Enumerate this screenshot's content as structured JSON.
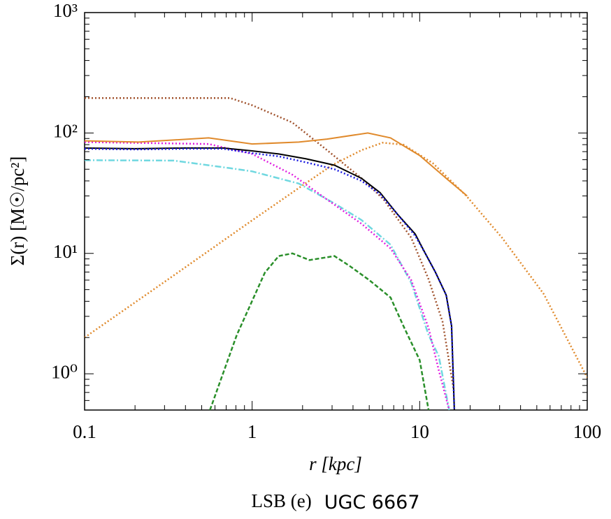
{
  "chart_data": {
    "type": "line",
    "x_label": "r [kpc]",
    "y_label": "Σ(r) [M☉/pc²]",
    "caption": [
      "LSB (e)",
      "UGC 6667"
    ],
    "xscale": "log",
    "yscale": "log",
    "xlim": [
      0.1,
      100
    ],
    "xticks": [
      0.1,
      1,
      10,
      100
    ],
    "ylim": [
      0.5,
      1000
    ],
    "yticks": [
      {
        "value": 1,
        "label": "10⁰"
      },
      {
        "value": 10,
        "label": "10¹"
      },
      {
        "value": 100,
        "label": "10²"
      },
      {
        "value": 1000,
        "label": "10³"
      }
    ],
    "series": [
      {
        "color": "#2a8f2a",
        "style": "dashed",
        "x": [
          0.56,
          0.81,
          1.19,
          1.44,
          1.74,
          2.2,
          3.1,
          3.8,
          5,
          6.7,
          8.1,
          10,
          11.3
        ],
        "values": [
          0.5,
          2.1,
          6.9,
          9.5,
          10,
          8.8,
          9.5,
          7.9,
          6,
          4.3,
          2.4,
          1.3,
          0.5
        ]
      },
      {
        "color": "#e08a2c",
        "style": "dotted",
        "x": [
          0.1,
          0.3,
          1,
          2,
          3,
          4.5,
          6,
          8,
          12,
          19,
          31,
          55,
          100
        ],
        "values": [
          2.0,
          5.8,
          18.8,
          36.7,
          54,
          72,
          83,
          80,
          56,
          30,
          13.5,
          4.6,
          0.93
        ]
      },
      {
        "color": "#a0522d",
        "style": "dotted",
        "x": [
          0.1,
          0.3,
          0.74,
          1,
          1.74,
          2.8,
          4.5,
          6.1,
          8.9,
          11.3,
          13.7,
          16
        ],
        "values": [
          195,
          195,
          195,
          170,
          122,
          72,
          42,
          28,
          13.5,
          6.1,
          2.7,
          0.72
        ]
      },
      {
        "color": "#70d8e0",
        "style": "dashdot",
        "x": [
          0.1,
          0.34,
          0.74,
          1,
          1.9,
          3.1,
          4.5,
          6.7,
          8.9,
          11.3,
          13,
          15
        ],
        "values": [
          59.4,
          59,
          51,
          48,
          38,
          26,
          18.9,
          11.8,
          5.7,
          2.1,
          1.4,
          0.5
        ]
      },
      {
        "color": "#e020e0",
        "style": "dotted",
        "x": [
          0.1,
          0.55,
          1,
          1.74,
          2.8,
          4.5,
          6.7,
          8.9,
          11.3,
          13,
          15
        ],
        "values": [
          84,
          81,
          67,
          45,
          28,
          17.6,
          11,
          6,
          2.4,
          1.07,
          0.5
        ]
      },
      {
        "color": "#e08a2c",
        "style": "solid",
        "x": [
          0.1,
          0.21,
          0.55,
          1,
          1.9,
          2.8,
          4.9,
          6.7,
          10,
          14.4,
          19.2
        ],
        "values": [
          86,
          84,
          91,
          81,
          84,
          89,
          100,
          91,
          65,
          42,
          30
        ]
      },
      {
        "color": "#000000",
        "style": "solid",
        "x": [
          0.1,
          0.2,
          0.4,
          0.67,
          1,
          1.44,
          2.1,
          3.1,
          4.5,
          5.8,
          7.4,
          9.4,
          10.8,
          12.4,
          14.4,
          15.5,
          16.1
        ],
        "values": [
          75,
          74,
          75,
          75,
          71,
          67,
          61,
          54,
          42,
          32,
          21,
          14.5,
          10,
          7,
          4.5,
          2.5,
          0.5
        ]
      },
      {
        "color": "#1a1ae0",
        "style": "dotted",
        "x": [
          0.1,
          0.2,
          0.4,
          0.67,
          1,
          1.44,
          2.1,
          3.1,
          4.5,
          5.8,
          7.4,
          9.4,
          10.8,
          12.4,
          14.4,
          15.5,
          16.1
        ],
        "values": [
          74,
          73,
          74,
          74,
          68,
          64,
          57,
          50,
          40,
          31,
          21,
          14,
          10,
          7,
          4.5,
          2.5,
          0.5
        ]
      }
    ]
  }
}
